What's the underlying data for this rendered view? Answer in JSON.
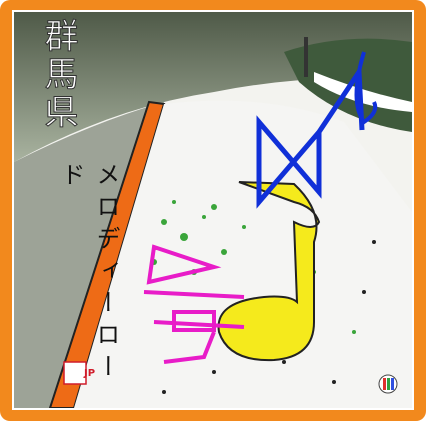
{
  "title": "群馬県",
  "subtitle": "メロディーロード",
  "badge": "JP"
}
